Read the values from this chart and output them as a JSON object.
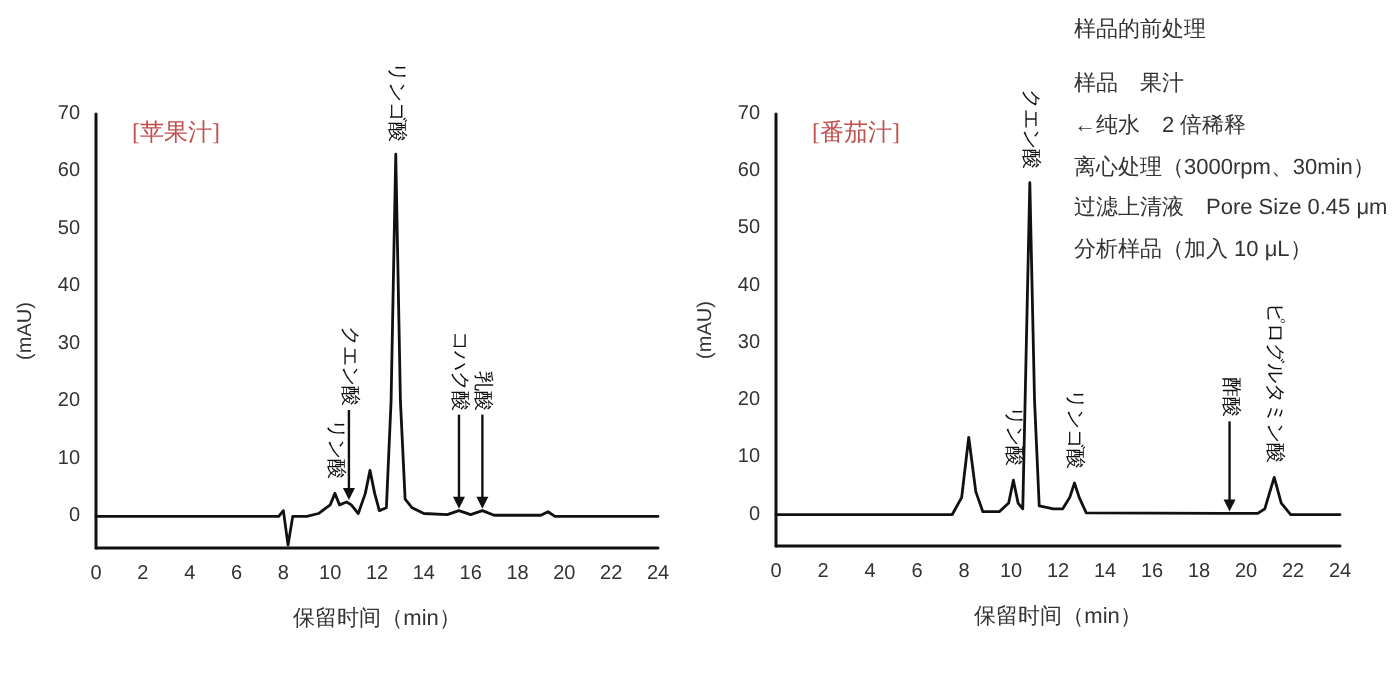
{
  "chart_data": [
    {
      "type": "line",
      "title": "[苹果汁]",
      "xlabel": "保留时间（min）",
      "ylabel": "(mAU)",
      "marker": "none",
      "grid": false,
      "xlim": [
        0,
        24
      ],
      "xticks": [
        0,
        2,
        4,
        6,
        8,
        10,
        12,
        14,
        16,
        18,
        20,
        22,
        24
      ],
      "ylim": [
        -5.5,
        70
      ],
      "yticks": [
        0,
        10,
        20,
        30,
        40,
        50,
        60,
        70
      ],
      "series": [
        {
          "color": "#111111",
          "x": [
            0,
            7.8,
            8.0,
            8.2,
            8.4,
            9.0,
            9.5,
            10.0,
            10.2,
            10.4,
            10.7,
            10.9,
            11.2,
            11.5,
            11.7,
            11.9,
            12.1,
            12.4,
            12.6,
            12.8,
            13.0,
            13.2,
            13.5,
            14.0,
            15.0,
            15.5,
            16.0,
            16.5,
            17.0,
            19.0,
            19.3,
            19.6,
            24
          ],
          "values": [
            0,
            0,
            1,
            -5,
            0,
            0,
            0.5,
            2,
            4,
            2,
            2.5,
            2,
            0.5,
            4,
            8,
            4,
            1,
            1.5,
            20,
            63,
            20,
            3,
            1.5,
            0.5,
            0.3,
            1,
            0.3,
            1,
            0.2,
            0.2,
            0.8,
            0,
            0
          ]
        }
      ],
      "annotations": [
        {
          "text": "リン酸",
          "x": 10.2,
          "y": 4
        },
        {
          "text": "クエン酸",
          "x": 10.8,
          "y": 2.5
        },
        {
          "text": "リンゴ酸",
          "x": 12.8,
          "y": 63
        },
        {
          "text": "コハク酸",
          "x": 15.5,
          "y": 1
        },
        {
          "text": "乳酸",
          "x": 16.5,
          "y": 1
        }
      ]
    },
    {
      "type": "line",
      "title": "[番茄汁]",
      "xlabel": "保留时间（min）",
      "ylabel": "(mAU)",
      "marker": "none",
      "grid": false,
      "xlim": [
        0,
        24
      ],
      "xticks": [
        0,
        2,
        4,
        6,
        8,
        10,
        12,
        14,
        16,
        18,
        20,
        22,
        24
      ],
      "ylim": [
        -5.5,
        70
      ],
      "yticks": [
        0,
        10,
        20,
        30,
        40,
        50,
        60,
        70
      ],
      "series": [
        {
          "color": "#111111",
          "x": [
            0,
            7.5,
            7.9,
            8.2,
            8.5,
            8.8,
            9.5,
            9.9,
            10.1,
            10.3,
            10.5,
            10.8,
            11.0,
            11.2,
            11.8,
            12.2,
            12.5,
            12.7,
            12.9,
            13.2,
            19.0,
            19.3,
            20.5,
            20.8,
            21.2,
            21.5,
            21.9,
            24
          ],
          "values": [
            0,
            0,
            3,
            13.5,
            4,
            0.5,
            0.5,
            2,
            6,
            2,
            1,
            58,
            20,
            1.5,
            1,
            1,
            3,
            5.5,
            3,
            0.3,
            0.2,
            0.2,
            0.2,
            1,
            6.5,
            2,
            0,
            0
          ]
        }
      ],
      "annotations": [
        {
          "text": "リン酸",
          "x": 10.1,
          "y": 6
        },
        {
          "text": "クエン酸",
          "x": 10.8,
          "y": 58
        },
        {
          "text": "リンゴ酸",
          "x": 12.7,
          "y": 5.5
        },
        {
          "text": "酢酸",
          "x": 19.3,
          "y": 0.2
        },
        {
          "text": "ピログルタミン酸",
          "x": 21.2,
          "y": 6.5
        }
      ]
    },
    {
      "type": "other",
      "title": "样品的前处理",
      "annotations": [
        "样品　果汁",
        "←纯水　2 倍稀释",
        "离心处理（3000rpm、30min）",
        "过滤上清液　Pore Size 0.45 μm",
        "分析样品（加入 10 μL）"
      ]
    }
  ]
}
